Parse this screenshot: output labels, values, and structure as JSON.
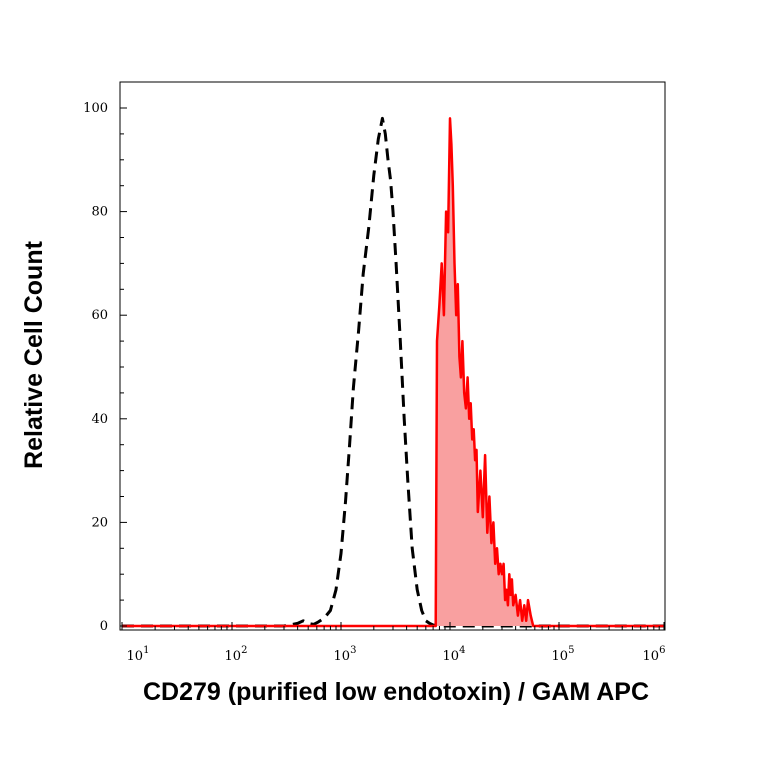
{
  "chart_data": {
    "type": "area",
    "title": "",
    "xlabel": "CD279 (purified low endotoxin) / GAM APC",
    "ylabel": "Relative Cell Count",
    "x_scale": "log",
    "xlim": [
      10,
      1000000
    ],
    "ylim": [
      0,
      100
    ],
    "grid": false,
    "legend": "none",
    "y_ticks": [
      0,
      20,
      40,
      60,
      80,
      100
    ],
    "x_ticks": [
      {
        "value": 10,
        "base": "10",
        "exp": "1"
      },
      {
        "value": 100,
        "base": "10",
        "exp": "2"
      },
      {
        "value": 1000,
        "base": "10",
        "exp": "3"
      },
      {
        "value": 10000,
        "base": "10",
        "exp": "4"
      },
      {
        "value": 100000,
        "base": "10",
        "exp": "5"
      },
      {
        "value": 1000000,
        "base": "10",
        "exp": "6"
      }
    ],
    "colors": {
      "stained": "#ff0000",
      "stained_fill": "#f9a0a0",
      "control": "#000000",
      "axis": "#000000"
    },
    "series": [
      {
        "role": "control",
        "style": "dashed",
        "x": [
          10,
          300,
          400,
          450,
          500,
          560,
          620,
          700,
          800,
          900,
          1000,
          1100,
          1200,
          1300,
          1450,
          1600,
          1800,
          2000,
          2200,
          2400,
          2550,
          2700,
          2850,
          3000,
          3200,
          3500,
          3800,
          4100,
          4500,
          5000,
          5500,
          6000,
          6500,
          7000,
          8000,
          1000000
        ],
        "values": [
          0,
          0,
          0.5,
          1,
          0.5,
          0.3,
          0.8,
          1.5,
          3,
          7,
          14,
          24,
          35,
          46,
          57,
          68,
          77,
          87,
          94,
          98,
          95,
          90,
          86,
          80,
          70,
          55,
          40,
          28,
          15,
          7,
          3,
          1,
          0.5,
          0.2,
          0,
          0
        ]
      },
      {
        "role": "stained",
        "style": "solid-filled",
        "x": [
          10,
          7400,
          7600,
          8000,
          8400,
          8800,
          9200,
          9600,
          10000,
          10300,
          10600,
          11000,
          11400,
          11800,
          12200,
          12600,
          13000,
          13500,
          14000,
          14500,
          15000,
          15500,
          16000,
          16500,
          17000,
          17500,
          18000,
          19000,
          20000,
          21000,
          22000,
          23000,
          24000,
          25000,
          26000,
          27000,
          28000,
          29000,
          30000,
          31000,
          32000,
          33000,
          34000,
          35000,
          36000,
          37000,
          38000,
          40000,
          42000,
          44000,
          46000,
          48000,
          50000,
          52000,
          55000,
          58000,
          60000,
          62000,
          1000000
        ],
        "values": [
          0,
          0,
          55,
          62,
          70,
          60,
          80,
          76,
          98,
          93,
          85,
          70,
          60,
          66,
          52,
          48,
          55,
          45,
          42,
          48,
          40,
          43,
          36,
          38,
          32,
          34,
          22,
          30,
          21,
          33,
          18,
          25,
          16,
          20,
          12,
          15,
          10,
          12,
          10,
          12,
          5,
          7,
          4,
          10,
          6,
          9,
          4,
          6,
          2,
          5,
          1,
          4,
          1,
          5,
          2,
          0,
          0,
          0,
          0
        ]
      }
    ]
  }
}
